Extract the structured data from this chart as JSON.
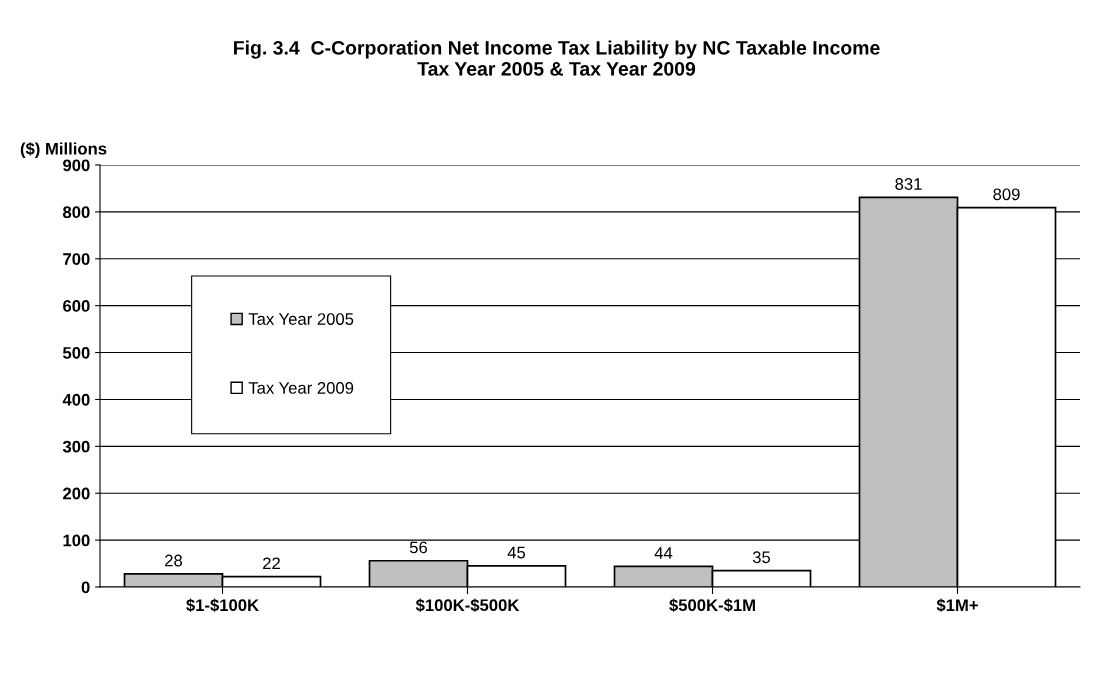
{
  "chart_data": {
    "type": "bar",
    "title": "Fig. 3.4  C-Corporation Net Income Tax Liability by NC Taxable Income\nTax Year 2005 & Tax Year 2009",
    "ylabel": "($) Millions",
    "categories": [
      "$1-$100K",
      "$100K-$500K",
      "$500K-$1M",
      "$1M+"
    ],
    "series": [
      {
        "name": "Tax Year 2005",
        "color": "#c0c0c0",
        "values": [
          28,
          56,
          44,
          831
        ]
      },
      {
        "name": "Tax Year 2009",
        "color": "#ffffff",
        "values": [
          22,
          45,
          35,
          809
        ]
      }
    ],
    "ylim": [
      0,
      900
    ],
    "yticks": [
      0,
      100,
      200,
      300,
      400,
      500,
      600,
      700,
      800,
      900
    ],
    "grid": "y",
    "legend": "left",
    "data_labels": true
  }
}
